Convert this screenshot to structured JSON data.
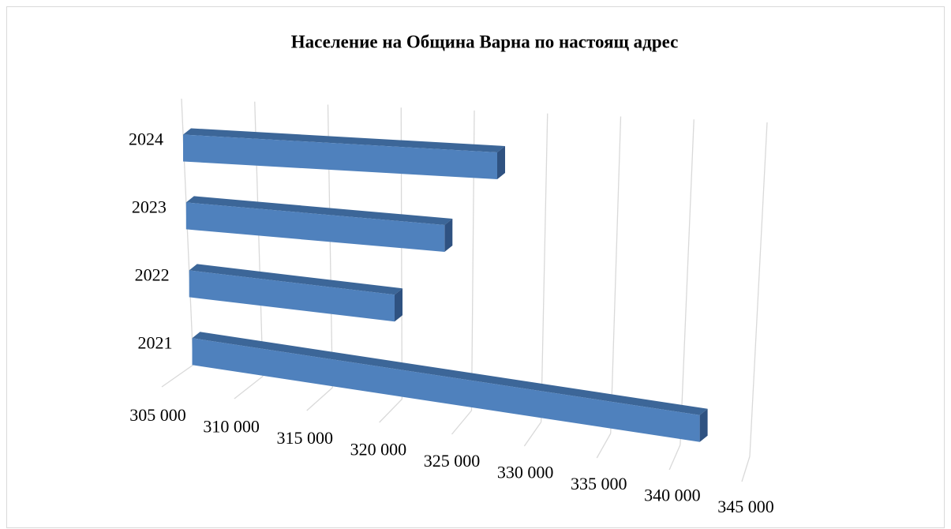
{
  "chart_data": {
    "type": "bar3d",
    "title": "Население на Община Варна по настоящ адрес",
    "categories": [
      "2021",
      "2022",
      "2023",
      "2024"
    ],
    "values": [
      341300,
      319500,
      323000,
      326600
    ],
    "color": "#4f81bd",
    "xlim": [
      305000,
      345000
    ],
    "xticks": [
      {
        "value": 305000,
        "label": "305 000"
      },
      {
        "value": 310000,
        "label": "310 000"
      },
      {
        "value": 315000,
        "label": "315 000"
      },
      {
        "value": 320000,
        "label": "320 000"
      },
      {
        "value": 325000,
        "label": "325 000"
      },
      {
        "value": 330000,
        "label": "330 000"
      },
      {
        "value": 335000,
        "label": "335 000"
      },
      {
        "value": 340000,
        "label": "340 000"
      },
      {
        "value": 345000,
        "label": "345 000"
      }
    ],
    "grid": true
  }
}
